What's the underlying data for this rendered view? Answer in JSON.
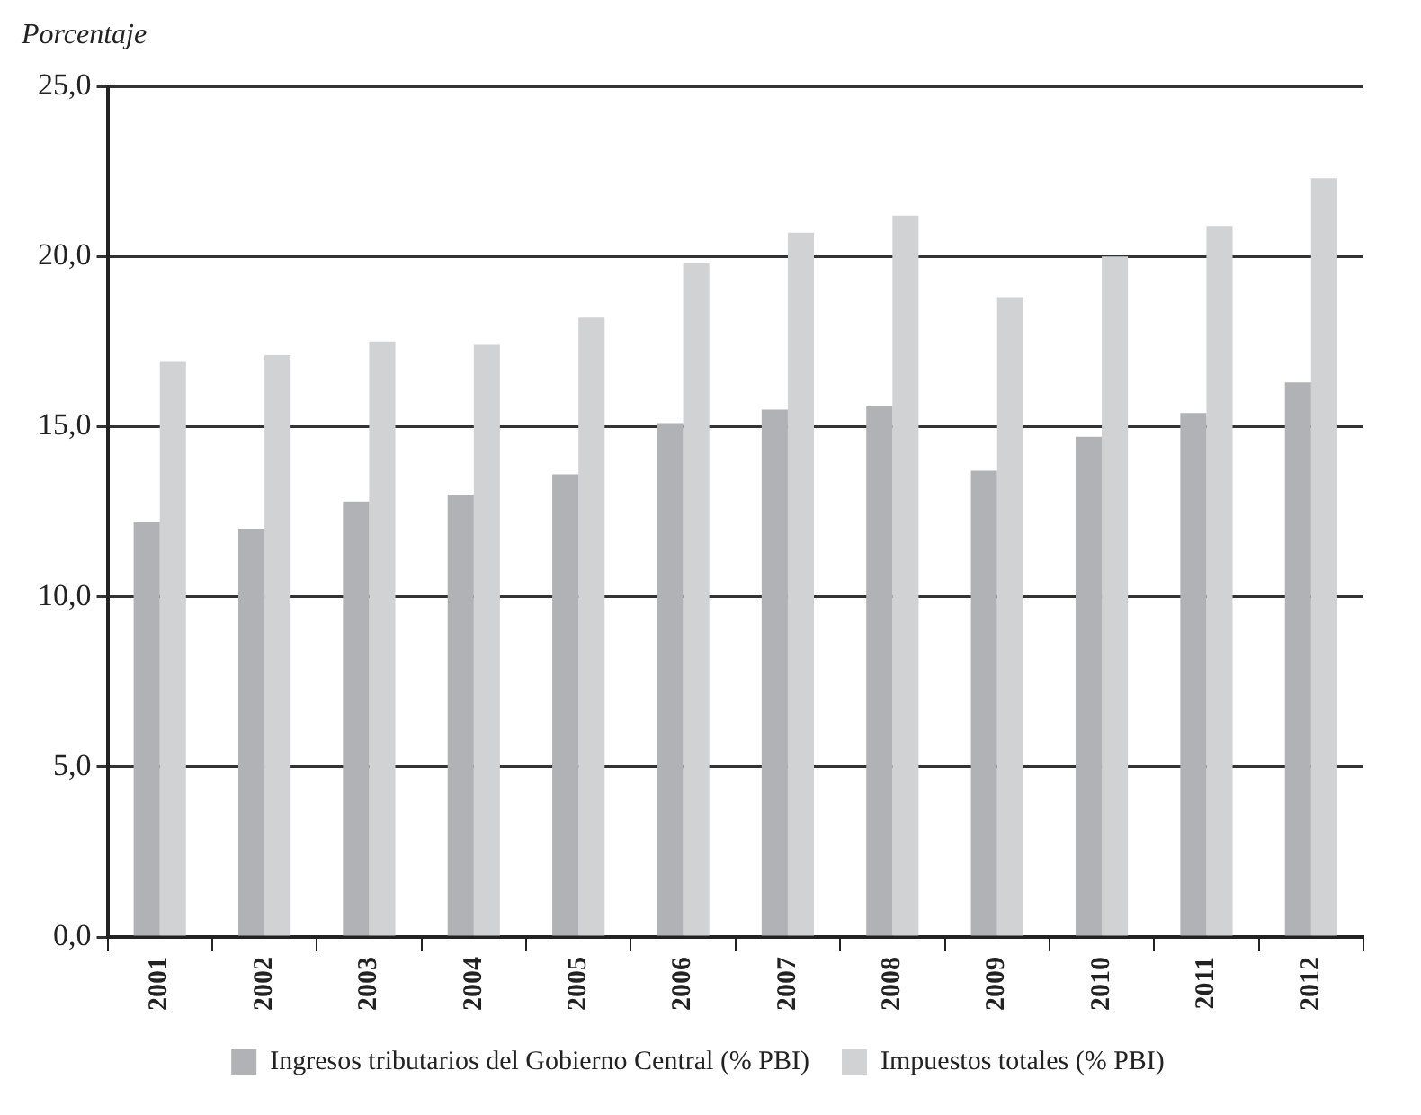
{
  "chart_data": {
    "type": "bar",
    "ylabel": "Porcentaje",
    "categories": [
      "2001",
      "2002",
      "2003",
      "2004",
      "2005",
      "2006",
      "2007",
      "2008",
      "2009",
      "2010",
      "2011",
      "2012"
    ],
    "series": [
      {
        "name": "Ingresos tributarios del Gobierno Central (% PBI)",
        "color": "#b1b2b5",
        "values": [
          12.2,
          12.0,
          12.8,
          13.0,
          13.6,
          15.1,
          15.5,
          15.6,
          13.7,
          14.7,
          15.4,
          16.3
        ]
      },
      {
        "name": "Impuestos totales (% PBI)",
        "color": "#d1d2d4",
        "values": [
          16.9,
          17.1,
          17.5,
          17.4,
          18.2,
          19.8,
          20.7,
          21.2,
          18.8,
          20.0,
          20.9,
          22.3
        ]
      }
    ],
    "ylim": [
      0,
      25
    ],
    "yticks": [
      {
        "value": 0,
        "label": "0,0"
      },
      {
        "value": 5,
        "label": "5,0"
      },
      {
        "value": 10,
        "label": "10,0"
      },
      {
        "value": 15,
        "label": "15,0"
      },
      {
        "value": 20,
        "label": "20,0"
      },
      {
        "value": 25,
        "label": "25,0"
      }
    ],
    "grid": "y",
    "legend": "bottom"
  }
}
